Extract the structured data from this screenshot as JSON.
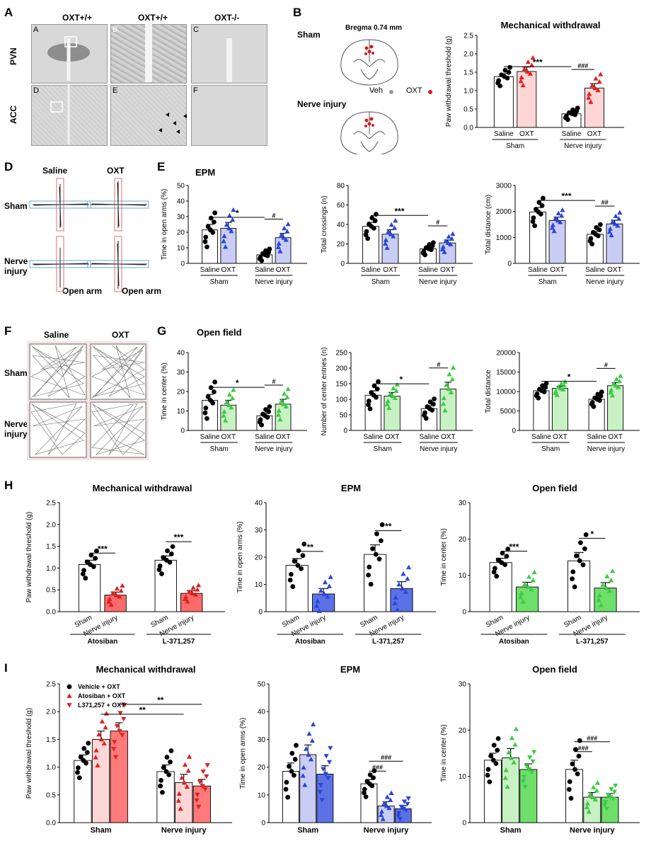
{
  "panelA": {
    "letter": "A",
    "col_heads": [
      "OXT+/+",
      "OXT+/+",
      "OXT-/-"
    ],
    "row_heads": [
      "PVN",
      "ACC"
    ],
    "sub_letters": [
      "A",
      "B",
      "C",
      "D",
      "E",
      "F"
    ]
  },
  "panelB": {
    "letter": "B",
    "sham": "Sham",
    "bregma": "Bregma 0.74 mm",
    "nerve": "Nerve injury",
    "legend_veh": "Veh",
    "legend_oxt": "OXT"
  },
  "panelD": {
    "letter": "D",
    "col_saline": "Saline",
    "col_oxt": "OXT",
    "row_sham": "Sham",
    "row_nerve_1": "Nerve",
    "row_nerve_2": "injury",
    "open_arm": "Open arm"
  },
  "panelF": {
    "letter": "F",
    "col_saline": "Saline",
    "col_oxt": "OXT",
    "row_sham": "Sham",
    "row_nerve_1": "Nerve",
    "row_nerve_2": "injury"
  },
  "panelE_label": {
    "letter": "E",
    "title": "EPM"
  },
  "panelG_label": {
    "letter": "G",
    "title": "Open field"
  },
  "panelH_label": {
    "letter": "H"
  },
  "panelI_label": {
    "letter": "I"
  },
  "chart_data": [
    {
      "id": "C",
      "type": "bar",
      "title": "Mechanical withdrawal",
      "ylabel": "Paw withdrawal threshold (g)",
      "ylim": [
        0,
        2.5
      ],
      "yticks": [
        "0.0",
        "0.5",
        "1.0",
        "1.5",
        "2.0",
        "2.5"
      ],
      "categories": [
        "Saline",
        "OXT",
        "Saline",
        "OXT"
      ],
      "groups": [
        "Sham",
        "Nerve injury"
      ],
      "values": [
        1.38,
        1.52,
        0.37,
        1.07
      ],
      "errors": [
        0.08,
        0.12,
        0.05,
        0.12
      ],
      "colors": [
        "#ffffff",
        "#ffd6d6",
        "#ffffff",
        "#ffd6d6"
      ],
      "markers": [
        "circle",
        "triangle",
        "circle",
        "triangle"
      ],
      "markerColors": [
        "#000000",
        "#e02020",
        "#000000",
        "#e02020"
      ],
      "annotations": [
        {
          "text": "***",
          "from": 0,
          "to": 2
        },
        {
          "text": "###",
          "from": 2,
          "to": 3
        }
      ]
    },
    {
      "id": "E1",
      "type": "bar",
      "title": "",
      "ylabel": "Time in open arms (%)",
      "ylim": [
        0,
        50
      ],
      "yticks": [
        "0",
        "10",
        "20",
        "30",
        "40",
        "50"
      ],
      "categories": [
        "Saline",
        "OXT",
        "Saline",
        "OXT"
      ],
      "groups": [
        "Sham",
        "Nerve injury"
      ],
      "values": [
        21.5,
        22.5,
        5.5,
        16.5
      ],
      "errors": [
        3.5,
        3.8,
        1.2,
        2.8
      ],
      "colors": [
        "#ffffff",
        "#c9cdf5",
        "#ffffff",
        "#c9cdf5"
      ],
      "markers": [
        "circle",
        "triangle",
        "circle",
        "triangle"
      ],
      "markerColors": [
        "#000000",
        "#2a45d8",
        "#000000",
        "#2a45d8"
      ],
      "annotations": [
        {
          "text": "*",
          "from": 0,
          "to": 2
        },
        {
          "text": "#",
          "from": 2,
          "to": 3
        }
      ]
    },
    {
      "id": "E2",
      "type": "bar",
      "title": "",
      "ylabel": "Total crossings (n)",
      "ylim": [
        0,
        80
      ],
      "yticks": [
        "0",
        "20",
        "40",
        "60",
        "80"
      ],
      "categories": [
        "Saline",
        "OXT",
        "Saline",
        "OXT"
      ],
      "groups": [
        "Sham",
        "Nerve injury"
      ],
      "values": [
        38,
        30,
        15,
        21
      ],
      "errors": [
        4,
        4.5,
        2,
        3
      ],
      "colors": [
        "#ffffff",
        "#c9cdf5",
        "#ffffff",
        "#c9cdf5"
      ],
      "markers": [
        "circle",
        "triangle",
        "circle",
        "triangle"
      ],
      "markerColors": [
        "#000000",
        "#2a45d8",
        "#000000",
        "#2a45d8"
      ],
      "annotations": [
        {
          "text": "***",
          "from": 0,
          "to": 2
        },
        {
          "text": "#",
          "from": 2,
          "to": 3
        }
      ]
    },
    {
      "id": "E3",
      "type": "bar",
      "title": "",
      "ylabel": "Total distance (cm)",
      "ylim": [
        0,
        3000
      ],
      "yticks": [
        "0",
        "1000",
        "2000",
        "3000"
      ],
      "categories": [
        "Saline",
        "OXT",
        "Saline",
        "OXT"
      ],
      "groups": [
        "Sham",
        "Nerve injury"
      ],
      "values": [
        1980,
        1650,
        1120,
        1520
      ],
      "errors": [
        170,
        130,
        120,
        140
      ],
      "colors": [
        "#ffffff",
        "#c9cdf5",
        "#ffffff",
        "#c9cdf5"
      ],
      "markers": [
        "circle",
        "triangle",
        "circle",
        "triangle"
      ],
      "markerColors": [
        "#000000",
        "#2a45d8",
        "#000000",
        "#2a45d8"
      ],
      "annotations": [
        {
          "text": "***",
          "from": 0,
          "to": 2
        },
        {
          "text": "##",
          "from": 2,
          "to": 3
        }
      ]
    },
    {
      "id": "G1",
      "type": "bar",
      "title": "",
      "ylabel": "Time in center (%)",
      "ylim": [
        0,
        40
      ],
      "yticks": [
        "0",
        "10",
        "20",
        "30",
        "40"
      ],
      "categories": [
        "Saline",
        "OXT",
        "Saline",
        "OXT"
      ],
      "groups": [
        "Sham",
        "Nerve injury"
      ],
      "values": [
        15.5,
        13,
        7.5,
        13.5
      ],
      "errors": [
        3,
        2.5,
        1.5,
        2.5
      ],
      "colors": [
        "#ffffff",
        "#c8f2c4",
        "#ffffff",
        "#c8f2c4"
      ],
      "markers": [
        "circle",
        "triangle",
        "circle",
        "triangle"
      ],
      "markerColors": [
        "#000000",
        "#3dcb45",
        "#000000",
        "#3dcb45"
      ],
      "annotations": [
        {
          "text": "*",
          "from": 0,
          "to": 2
        },
        {
          "text": "#",
          "from": 2,
          "to": 3
        }
      ]
    },
    {
      "id": "G2",
      "type": "bar",
      "title": "",
      "ylabel": "Number of center entries (n)",
      "ylim": [
        0,
        250
      ],
      "yticks": [
        "0",
        "50",
        "100",
        "150",
        "200",
        "250"
      ],
      "categories": [
        "Saline",
        "OXT",
        "Saline",
        "OXT"
      ],
      "groups": [
        "Sham",
        "Nerve injury"
      ],
      "values": [
        113,
        110,
        70,
        133
      ],
      "errors": [
        14,
        12,
        10,
        22
      ],
      "colors": [
        "#ffffff",
        "#c8f2c4",
        "#ffffff",
        "#c8f2c4"
      ],
      "markers": [
        "circle",
        "triangle",
        "circle",
        "triangle"
      ],
      "markerColors": [
        "#000000",
        "#3dcb45",
        "#000000",
        "#3dcb45"
      ],
      "annotations": [
        {
          "text": "*",
          "from": 0,
          "to": 2
        },
        {
          "text": "#",
          "from": 2,
          "to": 3
        }
      ]
    },
    {
      "id": "G3",
      "type": "bar",
      "title": "",
      "ylabel": "Total distance",
      "ylim": [
        0,
        20000
      ],
      "yticks": [
        "0",
        "5000",
        "10000",
        "15000",
        "20000"
      ],
      "categories": [
        "Saline",
        "OXT",
        "Saline",
        "OXT"
      ],
      "groups": [
        "Sham",
        "Nerve injury"
      ],
      "values": [
        10200,
        10800,
        8000,
        11500
      ],
      "errors": [
        600,
        550,
        600,
        800
      ],
      "colors": [
        "#ffffff",
        "#c8f2c4",
        "#ffffff",
        "#c8f2c4"
      ],
      "markers": [
        "circle",
        "triangle",
        "circle",
        "triangle"
      ],
      "markerColors": [
        "#000000",
        "#3dcb45",
        "#000000",
        "#3dcb45"
      ],
      "annotations": [
        {
          "text": "*",
          "from": 0,
          "to": 2
        },
        {
          "text": "#",
          "from": 2,
          "to": 3
        }
      ]
    },
    {
      "id": "H1",
      "type": "bar",
      "title": "Mechanical withdrawal",
      "ylabel": "Paw withdrawal threshold (g)",
      "ylim": [
        0,
        2.5
      ],
      "yticks": [
        "0.0",
        "0.5",
        "1.0",
        "1.5",
        "2.0",
        "2.5"
      ],
      "categories": [
        "Sham",
        "Nerve injury",
        "Sham",
        "Nerve injury"
      ],
      "groups": [
        "Atosiban",
        "L-371,257"
      ],
      "values": [
        1.08,
        0.38,
        1.18,
        0.42
      ],
      "errors": [
        0.1,
        0.07,
        0.1,
        0.06
      ],
      "colors": [
        "#ffffff",
        "#ff6b6b",
        "#ffffff",
        "#ff6b6b"
      ],
      "markers": [
        "circle",
        "triangle",
        "circle",
        "triangle"
      ],
      "markerColors": [
        "#000000",
        "#e02020",
        "#000000",
        "#e02020"
      ],
      "annotations": [
        {
          "text": "***",
          "from": 0,
          "to": 1
        },
        {
          "text": "***",
          "from": 2,
          "to": 3
        }
      ]
    },
    {
      "id": "H2",
      "type": "bar",
      "title": "EPM",
      "ylabel": "Time in open arms (%)",
      "ylim": [
        0,
        40
      ],
      "yticks": [
        "0",
        "10",
        "20",
        "30",
        "40"
      ],
      "categories": [
        "Sham",
        "Nerve injury",
        "Sham",
        "Nerve injury"
      ],
      "groups": [
        "Atosiban",
        "L-371,257"
      ],
      "values": [
        17,
        6.5,
        21,
        8.5
      ],
      "errors": [
        2.5,
        2,
        3.5,
        2.5
      ],
      "colors": [
        "#ffffff",
        "#5b72e6",
        "#ffffff",
        "#5b72e6"
      ],
      "markers": [
        "circle",
        "triangle",
        "circle",
        "triangle"
      ],
      "markerColors": [
        "#000000",
        "#2a45d8",
        "#000000",
        "#2a45d8"
      ],
      "annotations": [
        {
          "text": "**",
          "from": 0,
          "to": 1
        },
        {
          "text": "**",
          "from": 2,
          "to": 3
        }
      ]
    },
    {
      "id": "H3",
      "type": "bar",
      "title": "Open field",
      "ylabel": "Time in center (%)",
      "ylim": [
        0,
        30
      ],
      "yticks": [
        "0",
        "10",
        "20",
        "30"
      ],
      "categories": [
        "Sham",
        "Nerve injury",
        "Sham",
        "Nerve injury"
      ],
      "groups": [
        "Atosiban",
        "L-371,257"
      ],
      "values": [
        13.5,
        6.8,
        14,
        6.5
      ],
      "errors": [
        1.2,
        1.3,
        2.3,
        1.5
      ],
      "colors": [
        "#ffffff",
        "#6ddf6a",
        "#ffffff",
        "#6ddf6a"
      ],
      "markers": [
        "circle",
        "triangle",
        "circle",
        "triangle"
      ],
      "markerColors": [
        "#000000",
        "#3dcb45",
        "#000000",
        "#3dcb45"
      ],
      "annotations": [
        {
          "text": "***",
          "from": 0,
          "to": 1
        },
        {
          "text": "*",
          "from": 2,
          "to": 3
        }
      ]
    },
    {
      "id": "I1",
      "type": "bar",
      "title": "Mechanical withdrawal",
      "ylabel": "Paw withdrawal threshold (g)",
      "ylim": [
        0,
        2.5
      ],
      "yticks": [
        "0.0",
        "0.5",
        "1.0",
        "1.5",
        "2.0",
        "2.5"
      ],
      "groups": [
        "Sham",
        "Nerve injury"
      ],
      "legend": [
        "Vehicle + OXT",
        "Atosiban + OXT",
        "L371,257 + OXT"
      ],
      "values": [
        1.12,
        1.5,
        1.65,
        0.92,
        0.72,
        0.66
      ],
      "errors": [
        0.1,
        0.15,
        0.15,
        0.12,
        0.15,
        0.12
      ],
      "colors": [
        "#ffffff",
        "#ffd6d6",
        "#ff7a7a",
        "#ffffff",
        "#ffd6d6",
        "#ff7a7a"
      ],
      "markers": [
        "circle",
        "triangle",
        "tri-down",
        "circle",
        "triangle",
        "tri-down"
      ],
      "markerColors": [
        "#000000",
        "#e02020",
        "#e02020",
        "#000000",
        "#e02020",
        "#e02020"
      ],
      "annotations": [
        {
          "text": "**",
          "from": 1,
          "to": 4
        },
        {
          "text": "**",
          "from": 2,
          "to": 5
        }
      ]
    },
    {
      "id": "I2",
      "type": "bar",
      "title": "EPM",
      "ylabel": "Time in open arms (%)",
      "ylim": [
        0,
        50
      ],
      "yticks": [
        "0",
        "10",
        "20",
        "30",
        "40",
        "50"
      ],
      "groups": [
        "Sham",
        "Nerve injury"
      ],
      "values": [
        18.5,
        24.5,
        17.5,
        14,
        6,
        5
      ],
      "errors": [
        3,
        3.5,
        3,
        1.5,
        1.5,
        1.2
      ],
      "colors": [
        "#ffffff",
        "#c9cdf5",
        "#5b72e6",
        "#ffffff",
        "#c9cdf5",
        "#5b72e6"
      ],
      "markers": [
        "circle",
        "triangle",
        "tri-down",
        "circle",
        "triangle",
        "tri-down"
      ],
      "markerColors": [
        "#000000",
        "#2a45d8",
        "#2a45d8",
        "#000000",
        "#2a45d8",
        "#2a45d8"
      ],
      "annotations": [
        {
          "text": "###",
          "from": 3,
          "to": 4
        },
        {
          "text": "###",
          "from": 3,
          "to": 5
        }
      ]
    },
    {
      "id": "I3",
      "type": "bar",
      "title": "Open field",
      "ylabel": "Time in center (%)",
      "ylim": [
        0,
        30
      ],
      "yticks": [
        "0",
        "10",
        "20",
        "30"
      ],
      "groups": [
        "Sham",
        "Nerve injury"
      ],
      "values": [
        13.5,
        14,
        11.5,
        11.5,
        5.5,
        5.5
      ],
      "errors": [
        1.5,
        2,
        1.2,
        2,
        1,
        0.8
      ],
      "colors": [
        "#ffffff",
        "#c8f2c4",
        "#6ddf6a",
        "#ffffff",
        "#c8f2c4",
        "#6ddf6a"
      ],
      "markers": [
        "circle",
        "triangle",
        "tri-down",
        "circle",
        "triangle",
        "tri-down"
      ],
      "markerColors": [
        "#000000",
        "#3dcb45",
        "#3dcb45",
        "#000000",
        "#3dcb45",
        "#3dcb45"
      ],
      "annotations": [
        {
          "text": "###",
          "from": 3,
          "to": 4
        },
        {
          "text": "###",
          "from": 3,
          "to": 5
        }
      ]
    }
  ]
}
